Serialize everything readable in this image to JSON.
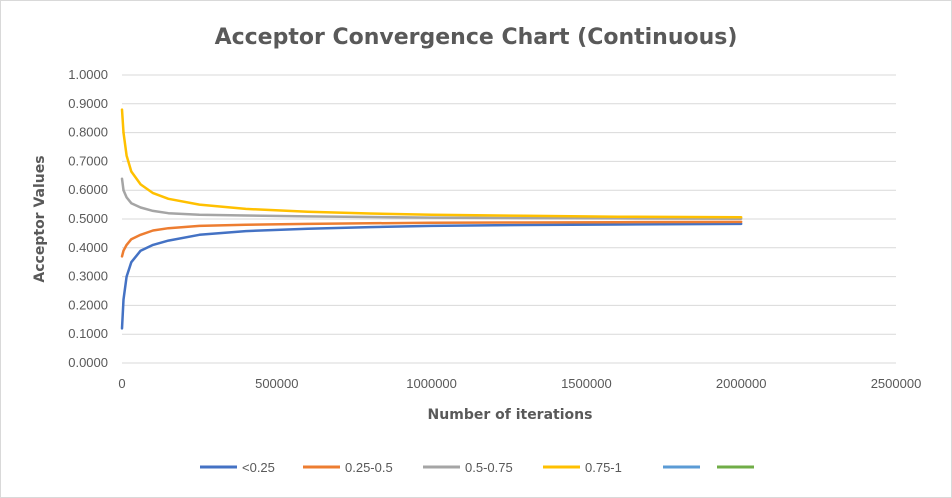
{
  "chart_data": {
    "type": "line",
    "title": "Acceptor Convergence Chart (Continuous)",
    "xlabel": "Number of iterations",
    "ylabel": "Acceptor Values",
    "xlim": [
      0,
      2500000
    ],
    "ylim": [
      0,
      1
    ],
    "x_ticks": [
      "0",
      "500000",
      "1000000",
      "1500000",
      "2000000",
      "2500000"
    ],
    "y_ticks": [
      "0.0000",
      "0.1000",
      "0.2000",
      "0.3000",
      "0.4000",
      "0.5000",
      "0.6000",
      "0.7000",
      "0.8000",
      "0.9000",
      "1.0000"
    ],
    "grid": "horizontal",
    "legend_position": "bottom",
    "series": [
      {
        "name": "<0.25",
        "color": "#4472C4",
        "points": [
          [
            0,
            0.12
          ],
          [
            5000,
            0.22
          ],
          [
            15000,
            0.3
          ],
          [
            30000,
            0.35
          ],
          [
            60000,
            0.39
          ],
          [
            100000,
            0.41
          ],
          [
            150000,
            0.425
          ],
          [
            250000,
            0.445
          ],
          [
            400000,
            0.458
          ],
          [
            600000,
            0.466
          ],
          [
            800000,
            0.472
          ],
          [
            1000000,
            0.476
          ],
          [
            1300000,
            0.479
          ],
          [
            1600000,
            0.481
          ],
          [
            2000000,
            0.483
          ]
        ]
      },
      {
        "name": "0.25-0.5",
        "color": "#ED7D31",
        "points": [
          [
            0,
            0.37
          ],
          [
            5000,
            0.39
          ],
          [
            15000,
            0.41
          ],
          [
            30000,
            0.43
          ],
          [
            60000,
            0.445
          ],
          [
            100000,
            0.46
          ],
          [
            150000,
            0.468
          ],
          [
            250000,
            0.476
          ],
          [
            400000,
            0.48
          ],
          [
            600000,
            0.483
          ],
          [
            800000,
            0.485
          ],
          [
            1000000,
            0.487
          ],
          [
            1300000,
            0.488
          ],
          [
            1600000,
            0.489
          ],
          [
            2000000,
            0.49
          ]
        ]
      },
      {
        "name": "0.5-0.75",
        "color": "#A5A5A5",
        "points": [
          [
            0,
            0.64
          ],
          [
            5000,
            0.6
          ],
          [
            15000,
            0.575
          ],
          [
            30000,
            0.555
          ],
          [
            60000,
            0.54
          ],
          [
            100000,
            0.528
          ],
          [
            150000,
            0.52
          ],
          [
            250000,
            0.515
          ],
          [
            400000,
            0.512
          ],
          [
            600000,
            0.509
          ],
          [
            800000,
            0.507
          ],
          [
            1000000,
            0.505
          ],
          [
            1300000,
            0.503
          ],
          [
            1600000,
            0.502
          ],
          [
            2000000,
            0.501
          ]
        ]
      },
      {
        "name": "0.75-1",
        "color": "#FFC000",
        "points": [
          [
            0,
            0.88
          ],
          [
            5000,
            0.8
          ],
          [
            15000,
            0.72
          ],
          [
            30000,
            0.665
          ],
          [
            60000,
            0.62
          ],
          [
            100000,
            0.59
          ],
          [
            150000,
            0.57
          ],
          [
            250000,
            0.55
          ],
          [
            400000,
            0.535
          ],
          [
            600000,
            0.525
          ],
          [
            800000,
            0.519
          ],
          [
            1000000,
            0.515
          ],
          [
            1300000,
            0.511
          ],
          [
            1600000,
            0.508
          ],
          [
            2000000,
            0.506
          ]
        ]
      },
      {
        "name": "",
        "color": "#5B9BD5",
        "points": []
      },
      {
        "name": "",
        "color": "#70AD47",
        "points": []
      }
    ]
  }
}
